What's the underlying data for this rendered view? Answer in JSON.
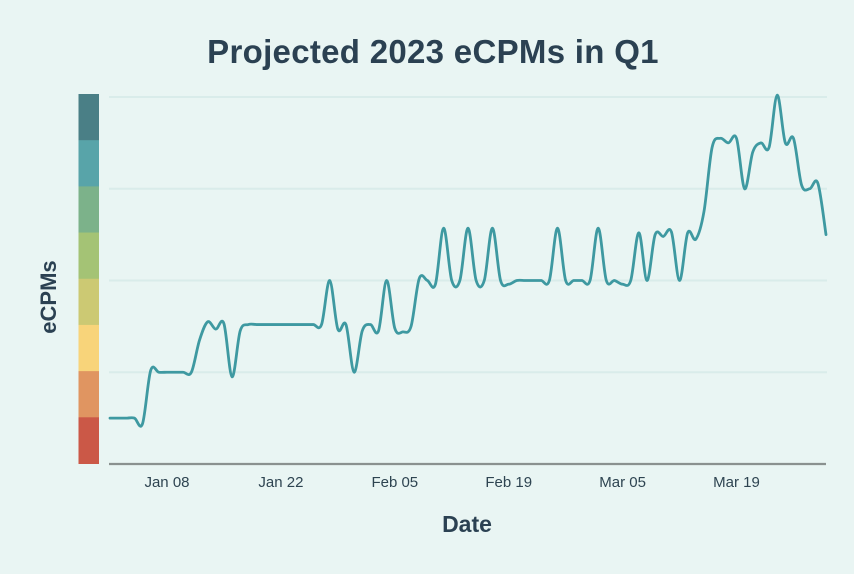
{
  "page": {
    "background_color": "#e9f5f3"
  },
  "chart_data": {
    "type": "line",
    "title": "Projected 2023 eCPMs in Q1",
    "xlabel": "Date",
    "ylabel": "eCPMs",
    "x_start_date": "Jan 01",
    "x_end_date": "Mar 29",
    "x_tick_labels": [
      "Jan 08",
      "Jan 22",
      "Feb 05",
      "Feb 19",
      "Mar 05",
      "Mar 19"
    ],
    "x_tick_days": [
      7,
      21,
      35,
      49,
      63,
      77
    ],
    "y_tick_labels_shown": false,
    "ylim": [
      0,
      4.1
    ],
    "y_gridlines": [
      1,
      2,
      3,
      4
    ],
    "grid_on": true,
    "legend": "none",
    "series": [
      {
        "daily_values": [
          0.5,
          0.5,
          0.5,
          0.5,
          0.44,
          1.02,
          1.0,
          1.0,
          1.0,
          1.0,
          1.0,
          1.35,
          1.55,
          1.47,
          1.53,
          0.95,
          1.45,
          1.52,
          1.52,
          1.52,
          1.52,
          1.52,
          1.52,
          1.52,
          1.52,
          1.52,
          1.52,
          2.0,
          1.47,
          1.52,
          1.0,
          1.45,
          1.52,
          1.45,
          2.0,
          1.48,
          1.44,
          1.5,
          2.02,
          2.0,
          1.96,
          2.57,
          2.0,
          2.0,
          2.57,
          2.0,
          2.0,
          2.57,
          2.0,
          1.96,
          2.0,
          2.0,
          2.0,
          2.0,
          2.0,
          2.57,
          2.0,
          2.0,
          2.0,
          2.0,
          2.57,
          2.0,
          2.0,
          1.96,
          2.0,
          2.52,
          2.0,
          2.5,
          2.48,
          2.53,
          2.0,
          2.52,
          2.45,
          2.75,
          3.45,
          3.55,
          3.5,
          3.55,
          3.0,
          3.4,
          3.5,
          3.45,
          4.02,
          3.5,
          3.55,
          3.04,
          3.0,
          3.06,
          2.5
        ]
      }
    ],
    "line_color": "#3e99a1",
    "grid_color": "#d9ecea",
    "axis_line_color": "#8a918f",
    "title_color": "#2b4152",
    "tick_label_color": "#2e4451",
    "colorbar_colors_top_to_bottom": [
      "#4a7f86",
      "#58a4a9",
      "#7cb28a",
      "#a4c375",
      "#ccc973",
      "#f8d47a",
      "#e09561",
      "#cb5847"
    ]
  }
}
